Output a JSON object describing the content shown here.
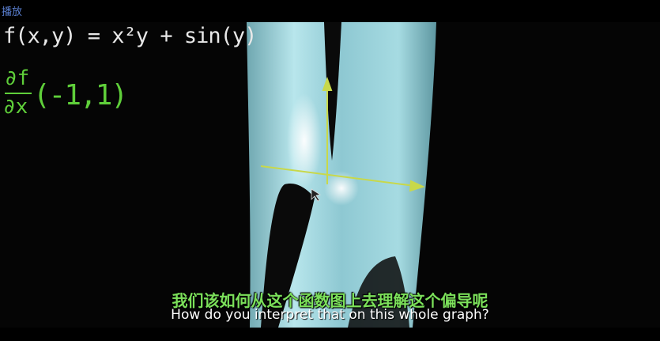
{
  "player": {
    "label": "播放"
  },
  "video": {
    "formula": "f(x,y) = x²y + sin(y)",
    "derivative": {
      "numerator": "∂f",
      "denominator": "∂x",
      "point": "(-1,1)"
    }
  },
  "subtitles": {
    "chinese": "我们该如何从这个函数图上去理解这个偏导呢",
    "english": "How do you interpret that on this whole graph?"
  }
}
